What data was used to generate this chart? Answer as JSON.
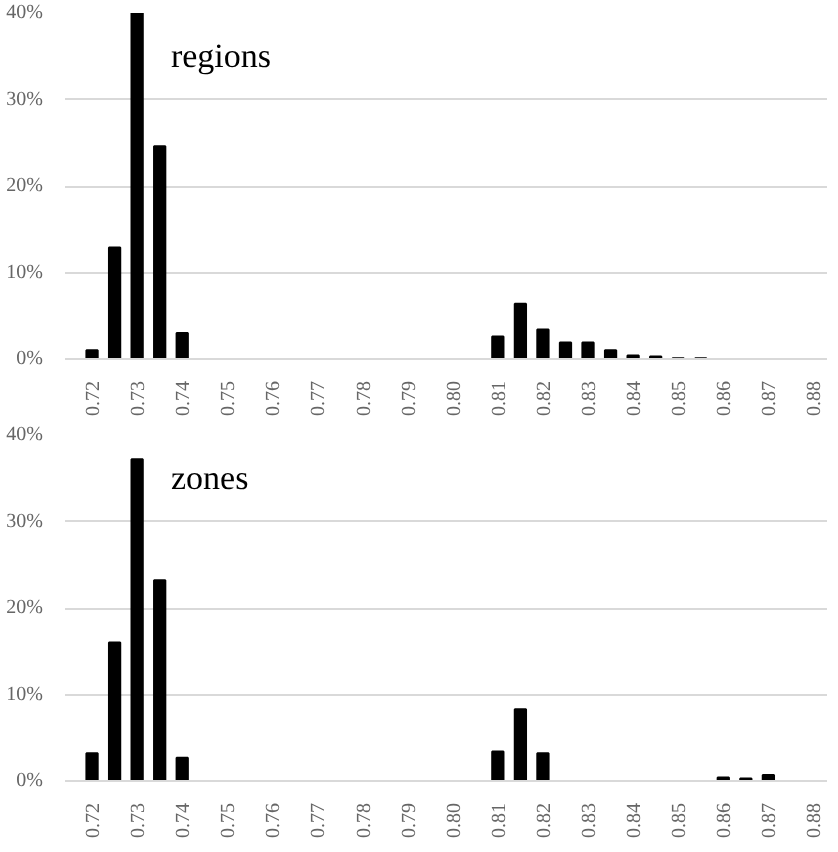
{
  "chart_data": [
    {
      "type": "bar",
      "title": "regions",
      "categories": [
        "0.72",
        null,
        "0.73",
        null,
        "0.74",
        null,
        "0.75",
        null,
        "0.76",
        null,
        "0.77",
        null,
        "0.78",
        null,
        "0.79",
        null,
        "0.80",
        null,
        "0.81",
        null,
        "0.82",
        null,
        "0.83",
        null,
        "0.84",
        null,
        "0.85",
        null,
        "0.86",
        null,
        "0.87",
        null,
        "0.88"
      ],
      "values": [
        1.0,
        12.9,
        40.0,
        24.6,
        3.0,
        0,
        0,
        0,
        0,
        0,
        0,
        0,
        0,
        0,
        0,
        0,
        0,
        0,
        2.6,
        6.4,
        3.4,
        1.9,
        1.9,
        1.0,
        0.4,
        0.3,
        0.1,
        0.1,
        0,
        0,
        0,
        0,
        0
      ],
      "color": "#000000",
      "ylim": [
        0,
        40
      ],
      "yticks": [
        {
          "value": 0,
          "label": "0%"
        },
        {
          "value": 10,
          "label": "10%"
        },
        {
          "value": 20,
          "label": "20%"
        },
        {
          "value": 30,
          "label": "30%"
        },
        {
          "value": 40,
          "label": "40%"
        }
      ],
      "grid": "y"
    },
    {
      "type": "bar",
      "title": "zones",
      "categories": [
        "0.72",
        null,
        "0.73",
        null,
        "0.74",
        null,
        "0.75",
        null,
        "0.76",
        null,
        "0.77",
        null,
        "0.78",
        null,
        "0.79",
        null,
        "0.80",
        null,
        "0.81",
        null,
        "0.82",
        null,
        "0.83",
        null,
        "0.84",
        null,
        "0.85",
        null,
        "0.86",
        null,
        "0.87",
        null,
        "0.88"
      ],
      "values": [
        3.2,
        16.0,
        37.2,
        23.2,
        2.7,
        0,
        0,
        0,
        0,
        0,
        0,
        0,
        0,
        0,
        0,
        0,
        0,
        0,
        3.4,
        8.3,
        3.2,
        0,
        0,
        0,
        0,
        0,
        0,
        0,
        0.4,
        0.3,
        0.7,
        0,
        0
      ],
      "color": "#000000",
      "ylim": [
        0,
        40
      ],
      "yticks": [
        {
          "value": 0,
          "label": "0%"
        },
        {
          "value": 10,
          "label": "10%"
        },
        {
          "value": 20,
          "label": "20%"
        },
        {
          "value": 30,
          "label": "30%"
        },
        {
          "value": 40,
          "label": "40%"
        }
      ],
      "grid": "y"
    }
  ]
}
